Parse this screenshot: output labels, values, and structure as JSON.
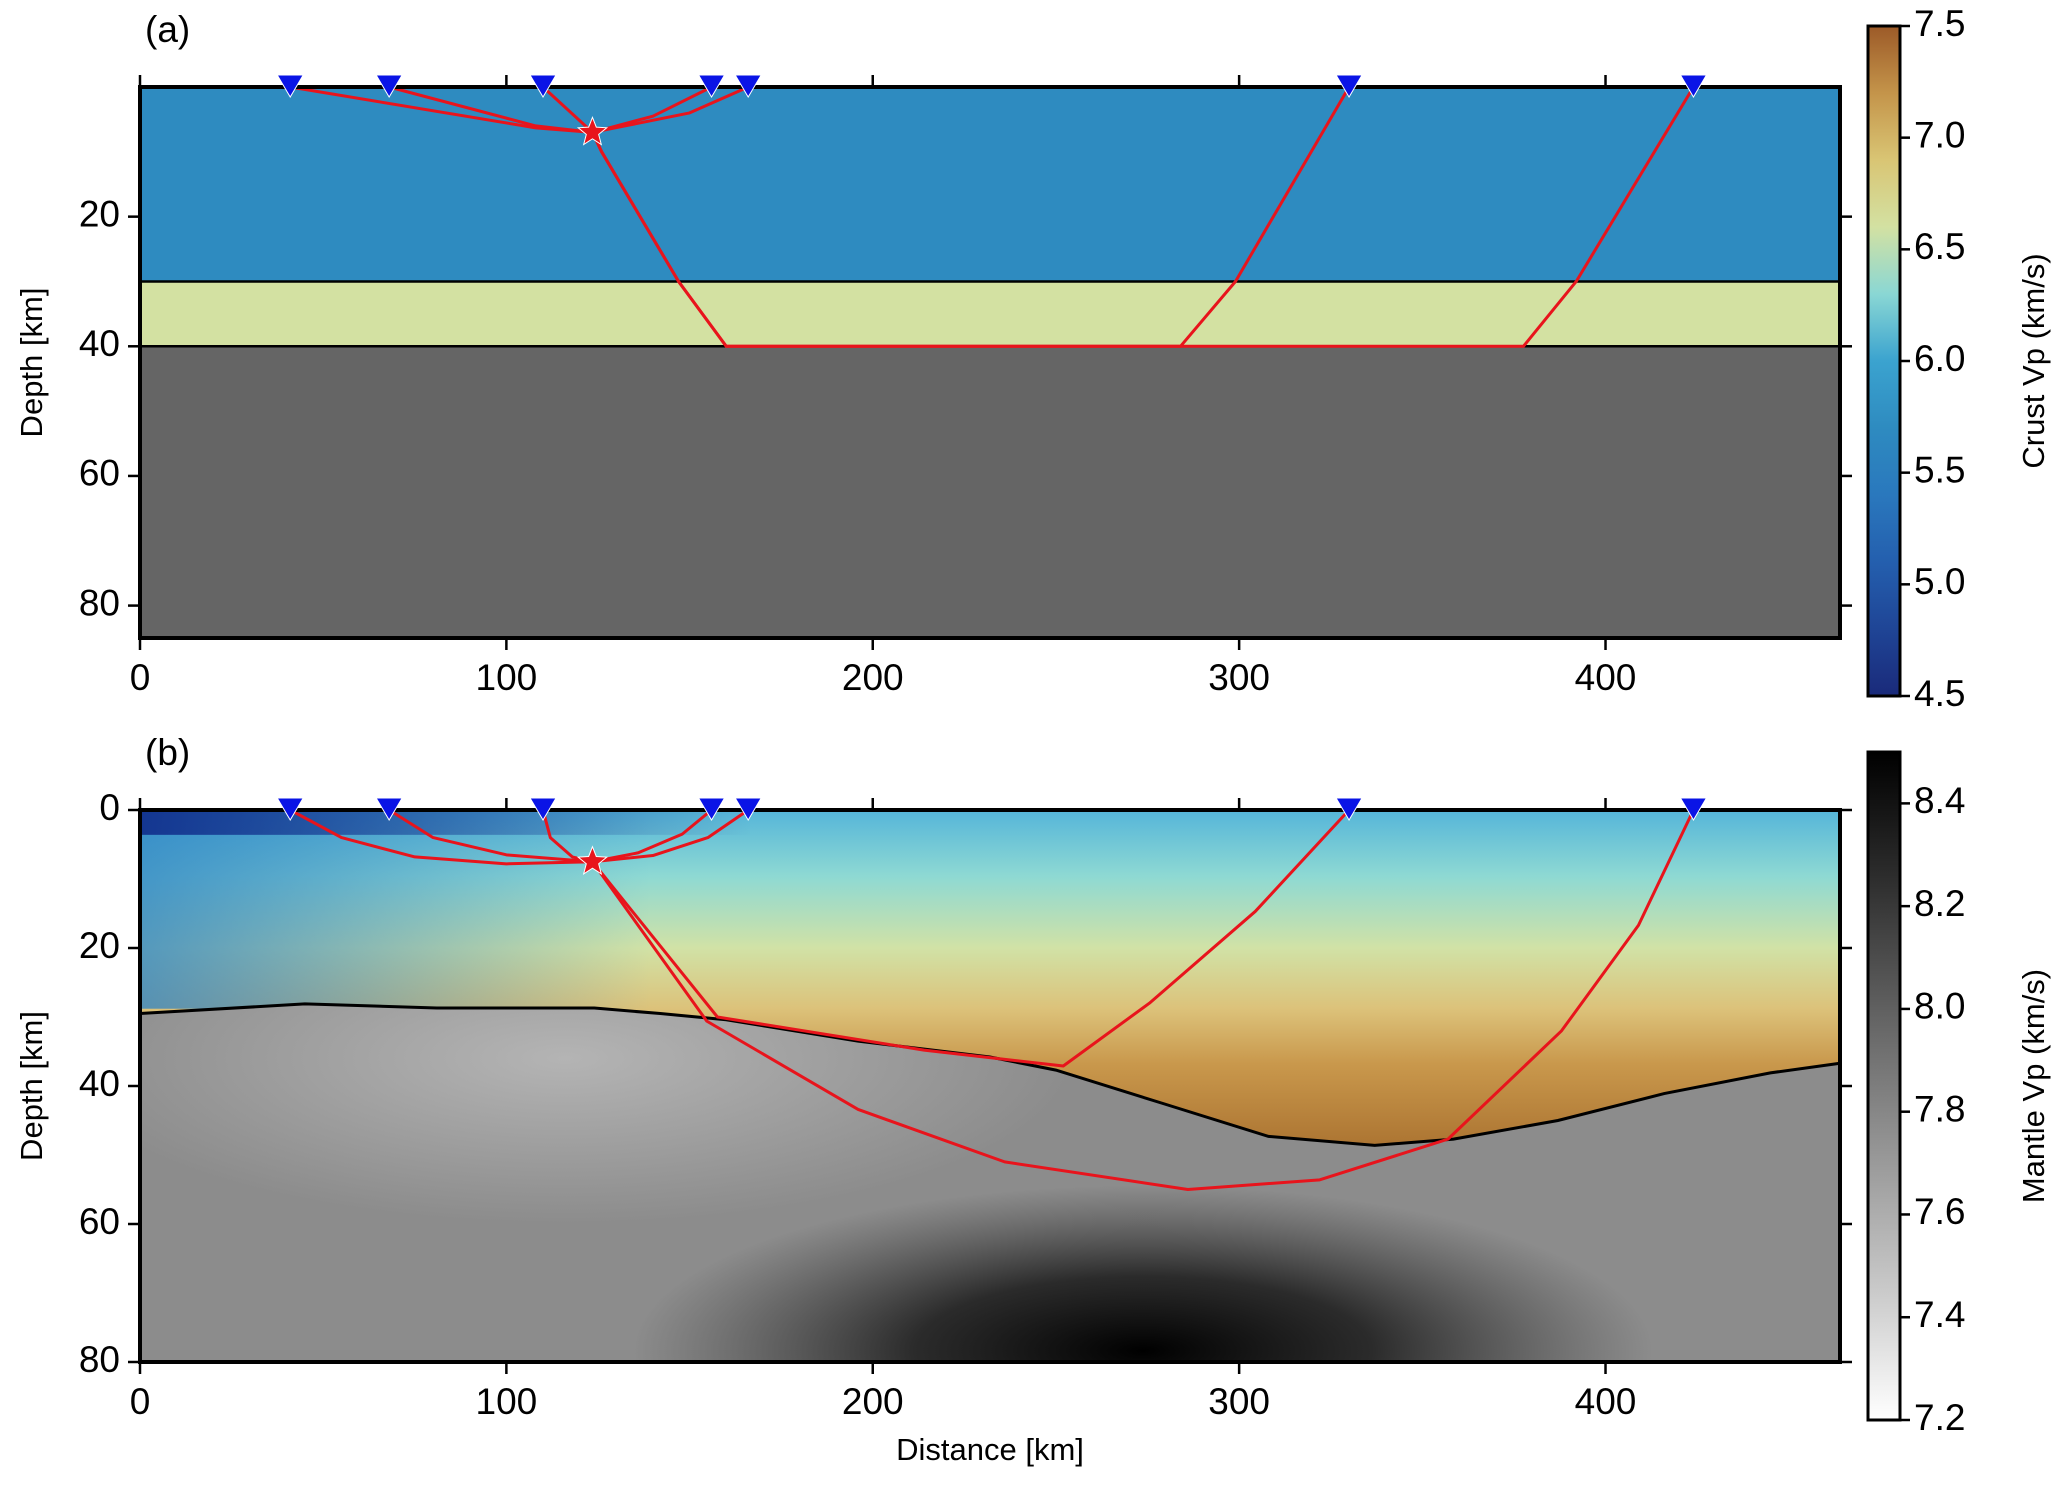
{
  "chart_data": [
    {
      "type": "cross-section",
      "label": "(a)",
      "xlim": [
        0,
        464
      ],
      "ylim": [
        0,
        85
      ],
      "xticks": [
        0,
        100,
        200,
        300,
        400
      ],
      "yticks": [
        20,
        40,
        60,
        80
      ],
      "ylabel": "Depth [km]",
      "layers": [
        {
          "top": 0,
          "bottom": 30,
          "color": "#2e8bc0"
        },
        {
          "top": 30,
          "bottom": 40,
          "color": "#d3e1a2"
        },
        {
          "top": 40,
          "bottom": 85,
          "color": "#656565"
        }
      ],
      "stations_x": [
        41,
        68,
        110,
        156,
        166,
        330,
        424
      ],
      "station_color": "#0a14e6",
      "source": {
        "x": 123.5,
        "depth": 7
      },
      "ray_color": "#e8141c",
      "rays": [
        {
          "x": [
            41,
            108,
            123.5
          ],
          "depth": [
            0,
            6.3,
            7
          ]
        },
        {
          "x": [
            68,
            108,
            123.5
          ],
          "depth": [
            0,
            6.0,
            7
          ]
        },
        {
          "x": [
            110,
            123.5
          ],
          "depth": [
            0,
            7
          ]
        },
        {
          "x": [
            156,
            140,
            123.5
          ],
          "depth": [
            0,
            4.5,
            7
          ]
        },
        {
          "x": [
            166,
            150,
            123.5
          ],
          "depth": [
            0,
            4,
            7
          ]
        },
        {
          "x": [
            123.5,
            126,
            147,
            160,
            284,
            299,
            330
          ],
          "depth": [
            7,
            10,
            30,
            40,
            40,
            30,
            0
          ]
        },
        {
          "x": [
            123.5,
            126,
            147,
            160,
            377.6,
            392,
            424
          ],
          "depth": [
            7,
            10,
            30,
            40,
            40,
            30,
            0
          ]
        }
      ],
      "colorbar": {
        "label": "Crust Vp (km/s)",
        "lim": [
          4.5,
          7.5
        ],
        "ticks": [
          4.5,
          {
            "value": 5,
            "label": "5.0"
          },
          5.5,
          {
            "value": 6,
            "label": "6.0"
          },
          6.5,
          {
            "value": 7,
            "label": "7.0"
          },
          7.5
        ],
        "colors": [
          "#1a2a7a",
          "#1f4596",
          "#245fae",
          "#2a78bd",
          "#2e8bc0",
          "#3ba3cf",
          "#8ad7d4",
          "#d3e1a2",
          "#d9c574",
          "#c4944a",
          "#9c5a28"
        ]
      }
    },
    {
      "type": "cross-section",
      "label": "(b)",
      "xlim": [
        0,
        464
      ],
      "ylim": [
        0,
        80
      ],
      "xticks": [
        0,
        100,
        200,
        300,
        400
      ],
      "yticks": [
        0,
        20,
        40,
        60,
        80
      ],
      "ylabel": "Depth [km]",
      "xlabel": "Distance [km]",
      "moho": {
        "x": [
          0,
          45,
          81,
          124,
          142,
          160,
          196,
          232,
          250,
          279,
          308,
          337,
          358.5,
          387,
          416,
          445,
          464
        ],
        "depth": [
          29.5,
          28.1,
          28.7,
          28.7,
          29.5,
          30.4,
          33.5,
          35.8,
          37.7,
          42.5,
          47.3,
          48.6,
          47.7,
          45,
          41.1,
          38.1,
          36.7
        ]
      },
      "stations_x": [
        41,
        68,
        110,
        156,
        166,
        330,
        424
      ],
      "station_color": "#0a14e6",
      "source": {
        "x": 123.5,
        "depth": 7.5
      },
      "ray_color": "#e8141c",
      "rays": [
        {
          "x": [
            41,
            55,
            75,
            100,
            123.5
          ],
          "depth": [
            0,
            4,
            6.8,
            7.8,
            7.5
          ]
        },
        {
          "x": [
            68,
            80,
            100,
            123.5
          ],
          "depth": [
            0,
            4,
            6.5,
            7.5
          ]
        },
        {
          "x": [
            110,
            112,
            118,
            123.5
          ],
          "depth": [
            0,
            4,
            6.8,
            7.5
          ]
        },
        {
          "x": [
            156,
            148,
            136,
            123.5
          ],
          "depth": [
            0,
            3.5,
            6.2,
            7.5
          ]
        },
        {
          "x": [
            166,
            155,
            140,
            123.5
          ],
          "depth": [
            0,
            4,
            6.6,
            7.5
          ]
        },
        {
          "x": [
            123.5,
            157.6,
            214,
            252,
            275.5,
            304.4,
            330
          ],
          "depth": [
            7.5,
            30,
            34.8,
            37.1,
            28,
            14.7,
            0
          ]
        },
        {
          "x": [
            123.5,
            154.7,
            196,
            236,
            286,
            322,
            357,
            388,
            409,
            424
          ],
          "depth": [
            7.5,
            30.6,
            43.4,
            51,
            55,
            53.6,
            47.7,
            32,
            16.7,
            0
          ]
        }
      ],
      "colorbar": {
        "label": "Mantle Vp (km/s)",
        "lim": [
          7.2,
          8.5
        ],
        "ticks": [
          7.2,
          7.4,
          7.6,
          7.8,
          {
            "value": 8,
            "label": "8.0"
          },
          8.2,
          8.4
        ],
        "colors": [
          "#ffffff",
          "#c8c8c8",
          "#969696",
          "#646464",
          "#303030",
          "#000000"
        ]
      }
    }
  ]
}
